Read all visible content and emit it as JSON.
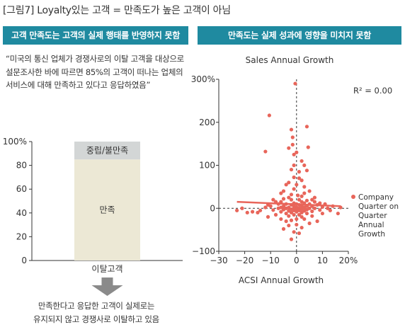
{
  "figure_title": "[그림7] Loyalty있는 고객 = 만족도가 높은 고객이 아님",
  "left_panel": {
    "header": "고객 만족도는 고객의 실제 행태를 반영하지 못함",
    "quote": "“미국의 통신 업체가 경쟁사로의 이탈 고객을 대상으로 설문조사한 바에 따르면 85%의 고객이 떠나는 업체의 서비스에 대해 만족하고 있다고 응답하였음”",
    "conclusion_lines": [
      "만족한다고 응답한 고객이 실제로는",
      "유지되지 않고 경쟁사로 이탈하고 있음"
    ],
    "colors": {
      "satisfied": "#ece8d5",
      "neutral": "#d3d6d6",
      "arrow": "#8a8a8a"
    }
  },
  "right_panel": {
    "header": "만족도는 실제 성과에 영향을 미치지 못함",
    "r2_label": "R² = 0.00",
    "colors": {
      "point": "#e8655a",
      "trend": "#e8655a",
      "header_bg": "#1f8aa0"
    }
  },
  "chart_data": [
    {
      "type": "bar",
      "categories": [
        "이탈고객"
      ],
      "series": [
        {
          "name": "만족",
          "values": [
            85
          ]
        },
        {
          "name": "중립/불만족",
          "values": [
            15
          ]
        }
      ],
      "stacked": true,
      "ylim": [
        0,
        100
      ],
      "yticks": [
        0,
        20,
        40,
        60,
        80,
        100
      ],
      "ytick_labels": [
        "0",
        "20",
        "40",
        "60",
        "80",
        "100%"
      ],
      "xlabel": "이탈고객"
    },
    {
      "type": "scatter",
      "title": "Sales Annual Growth",
      "xlabel": "ACSI Annual Growth",
      "ylabel": "",
      "xlim": [
        -30,
        20
      ],
      "ylim": [
        -100,
        300
      ],
      "xticks": [
        -30,
        -20,
        -10,
        0,
        10,
        20
      ],
      "xtick_labels": [
        "−30",
        "−20",
        "−10",
        "0",
        "10",
        "20%"
      ],
      "yticks": [
        -100,
        0,
        100,
        200,
        300
      ],
      "ytick_labels": [
        "−100",
        "0",
        "100",
        "200",
        "300%"
      ],
      "series": [
        {
          "name": "Company Quarter on Quarter Annual Growth",
          "points": [
            [
              -0.5,
              290
            ],
            [
              -10.5,
              216
            ],
            [
              4,
              190
            ],
            [
              -2,
              183
            ],
            [
              -1.5,
              165
            ],
            [
              -1.5,
              148
            ],
            [
              -3,
              140
            ],
            [
              4.5,
              142
            ],
            [
              -12,
              132
            ],
            [
              -1,
              125
            ],
            [
              2,
              110
            ],
            [
              3,
              100
            ],
            [
              -2,
              90
            ],
            [
              4,
              88
            ],
            [
              -1,
              72
            ],
            [
              1,
              70
            ],
            [
              2,
              65
            ],
            [
              -3,
              60
            ],
            [
              -4,
              55
            ],
            [
              3,
              50
            ],
            [
              -1,
              45
            ],
            [
              5,
              40
            ],
            [
              -6,
              35
            ],
            [
              -2,
              32
            ],
            [
              0.5,
              30
            ],
            [
              2,
              28
            ],
            [
              7,
              25
            ],
            [
              -3,
              25
            ],
            [
              -5,
              22
            ],
            [
              1,
              20
            ],
            [
              -2,
              20
            ],
            [
              4,
              18
            ],
            [
              -8,
              15
            ],
            [
              2,
              15
            ],
            [
              -1,
              12
            ],
            [
              3,
              12
            ],
            [
              5,
              10
            ],
            [
              -4,
              10
            ],
            [
              0,
              10
            ],
            [
              -2,
              8
            ],
            [
              1,
              8
            ],
            [
              8,
              8
            ],
            [
              -10,
              5
            ],
            [
              -5,
              5
            ],
            [
              -1,
              5
            ],
            [
              2,
              5
            ],
            [
              4,
              5
            ],
            [
              6,
              5
            ],
            [
              10,
              3
            ],
            [
              -12,
              2
            ],
            [
              -6,
              2
            ],
            [
              -3,
              2
            ],
            [
              0,
              2
            ],
            [
              3,
              2
            ],
            [
              -1,
              0
            ],
            [
              1,
              0
            ],
            [
              -4,
              0
            ],
            [
              5,
              0
            ],
            [
              -7,
              0
            ],
            [
              7,
              0
            ],
            [
              12,
              0
            ],
            [
              -2,
              -2
            ],
            [
              2,
              -2
            ],
            [
              -5,
              -3
            ],
            [
              0,
              -3
            ],
            [
              4,
              -3
            ],
            [
              -9,
              -4
            ],
            [
              9,
              -4
            ],
            [
              -1,
              -5
            ],
            [
              1,
              -5
            ],
            [
              -3,
              -6
            ],
            [
              3,
              -6
            ],
            [
              6,
              -7
            ],
            [
              -6,
              -8
            ],
            [
              0,
              -8
            ],
            [
              -15,
              -10
            ],
            [
              2,
              -10
            ],
            [
              -2,
              -10
            ],
            [
              10,
              -12
            ],
            [
              -4,
              -12
            ],
            [
              4,
              -12
            ],
            [
              -1,
              -15
            ],
            [
              1,
              -15
            ],
            [
              -8,
              -15
            ],
            [
              16,
              -12
            ],
            [
              6,
              -18
            ],
            [
              -3,
              -18
            ],
            [
              -11,
              -20
            ],
            [
              2,
              -20
            ],
            [
              -6,
              -25
            ],
            [
              3,
              -25
            ],
            [
              0,
              -25
            ],
            [
              -2,
              -28
            ],
            [
              8,
              -30
            ],
            [
              -14,
              -5
            ],
            [
              -17,
              -8
            ],
            [
              -19,
              -10
            ],
            [
              -23,
              -5
            ],
            [
              -21,
              0
            ],
            [
              14,
              5
            ],
            [
              17,
              2
            ],
            [
              13,
              -5
            ],
            [
              -7,
              10
            ],
            [
              7,
              15
            ],
            [
              -9,
              20
            ],
            [
              11,
              10
            ],
            [
              5,
              -35
            ],
            [
              -3,
              -40
            ],
            [
              -5,
              -48
            ],
            [
              2,
              -45
            ],
            [
              -1,
              -55
            ],
            [
              1,
              -58
            ],
            [
              -2,
              -72
            ],
            [
              0,
              -38
            ],
            [
              -4,
              -30
            ],
            [
              9,
              12
            ],
            [
              -11,
              8
            ],
            [
              6,
              20
            ],
            [
              -6,
              15
            ],
            [
              3,
              35
            ],
            [
              -5,
              40
            ],
            [
              0,
              55
            ],
            [
              1,
              85
            ],
            [
              -1,
              100
            ],
            [
              0,
              130
            ]
          ]
        }
      ],
      "trendline": {
        "x": [
          -23,
          17
        ],
        "y": [
          15,
          5
        ]
      },
      "legend_position": "right",
      "grid": false
    }
  ]
}
